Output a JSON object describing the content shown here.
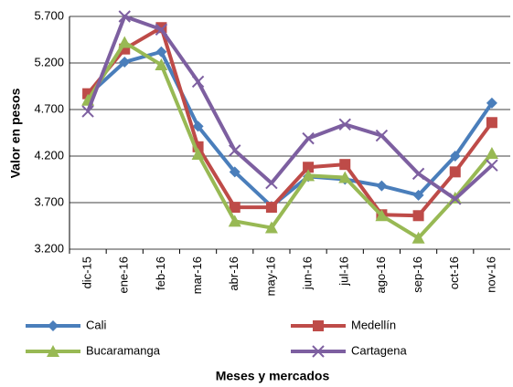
{
  "chart_data": {
    "type": "line",
    "y_label": "Valor en pesos",
    "x_label": "Meses y mercados",
    "categories": [
      "dic-15",
      "ene-16",
      "feb-16",
      "mar-16",
      "abr-16",
      "may-16",
      "jun-16",
      "jul-16",
      "ago-16",
      "sep-16",
      "oct-16",
      "nov-16"
    ],
    "series": [
      {
        "name": "Cali",
        "color": "#4a7ebb",
        "marker": "diamond",
        "values": [
          4850,
          5210,
          5320,
          4520,
          4030,
          3660,
          3980,
          3950,
          3880,
          3780,
          4200,
          4770
        ]
      },
      {
        "name": "Medellín",
        "color": "#be4b48",
        "marker": "square",
        "values": [
          4870,
          5350,
          5580,
          4300,
          3650,
          3650,
          4080,
          4110,
          3570,
          3560,
          4030,
          4560
        ]
      },
      {
        "name": "Bucaramanga",
        "color": "#98b954",
        "marker": "triangle",
        "values": [
          4800,
          5420,
          5180,
          4220,
          3500,
          3430,
          3990,
          3970,
          3560,
          3320,
          3750,
          4230
        ]
      },
      {
        "name": "Cartagena",
        "color": "#7d5fa0",
        "marker": "x",
        "values": [
          4680,
          5700,
          5560,
          5000,
          4260,
          3910,
          4390,
          4540,
          4420,
          4010,
          3740,
          4100
        ]
      }
    ],
    "ylim": [
      3200,
      5700
    ],
    "yticks": [
      {
        "value": 3200,
        "label": "3.200"
      },
      {
        "value": 3700,
        "label": "3.700"
      },
      {
        "value": 4200,
        "label": "4.200"
      },
      {
        "value": 4700,
        "label": "4.700"
      },
      {
        "value": 5200,
        "label": "5.200"
      },
      {
        "value": 5700,
        "label": "5.700"
      }
    ],
    "grid": true,
    "legend": "bottom"
  }
}
